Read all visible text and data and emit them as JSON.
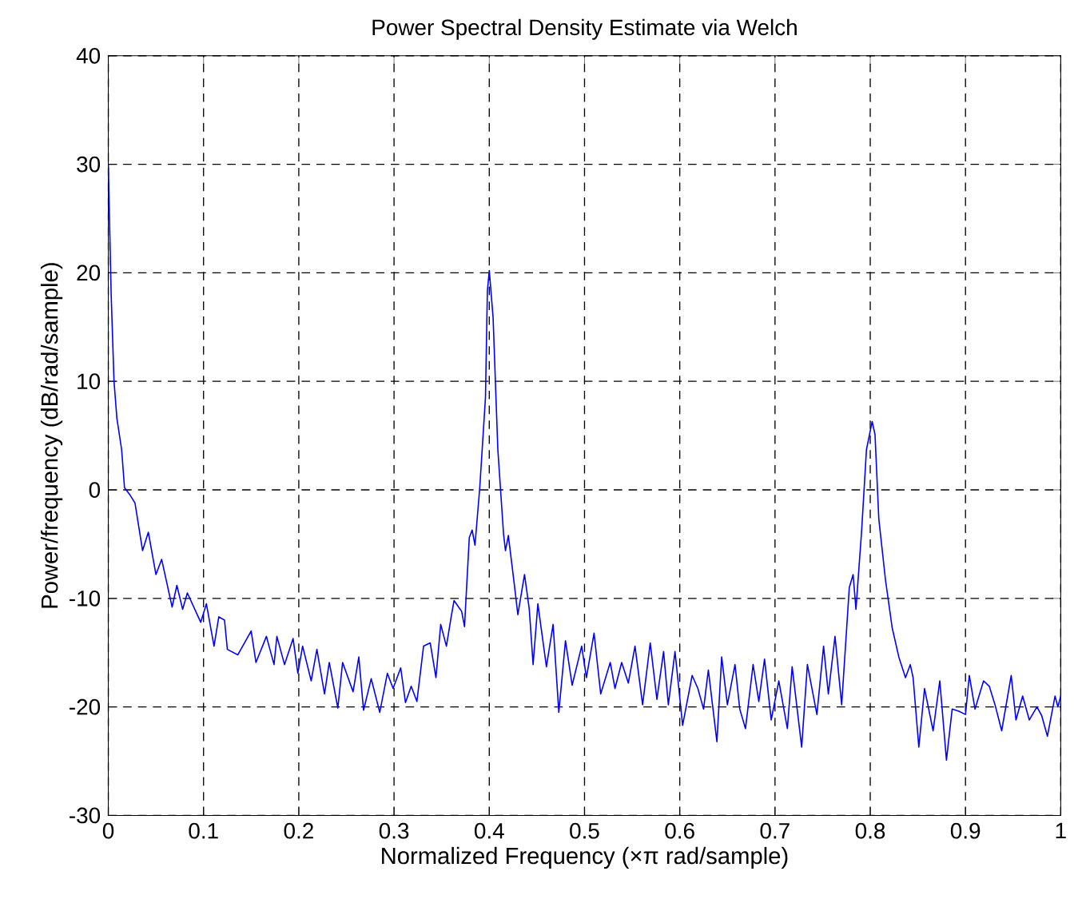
{
  "chart_data": {
    "type": "line",
    "title": "Power Spectral Density Estimate via Welch",
    "xlabel": "Normalized Frequency  (×π rad/sample)",
    "ylabel": "Power/frequency (dB/rad/sample)",
    "x": [
      0,
      0.003,
      0.006,
      0.009,
      0.014,
      0.017,
      0.023,
      0.028,
      0.036,
      0.042,
      0.05,
      0.056,
      0.067,
      0.072,
      0.078,
      0.083,
      0.097,
      0.103,
      0.111,
      0.116,
      0.122,
      0.125,
      0.136,
      0.15,
      0.155,
      0.166,
      0.174,
      0.177,
      0.185,
      0.194,
      0.199,
      0.204,
      0.213,
      0.219,
      0.227,
      0.232,
      0.241,
      0.246,
      0.257,
      0.263,
      0.268,
      0.276,
      0.285,
      0.293,
      0.299,
      0.307,
      0.312,
      0.318,
      0.324,
      0.331,
      0.338,
      0.344,
      0.349,
      0.355,
      0.36,
      0.363,
      0.371,
      0.374,
      0.379,
      0.382,
      0.385,
      0.39,
      0.396,
      0.398,
      0.4,
      0.404,
      0.409,
      0.415,
      0.417,
      0.42,
      0.426,
      0.43,
      0.437,
      0.442,
      0.446,
      0.451,
      0.46,
      0.467,
      0.473,
      0.48,
      0.487,
      0.497,
      0.502,
      0.51,
      0.517,
      0.527,
      0.532,
      0.539,
      0.546,
      0.553,
      0.561,
      0.569,
      0.576,
      0.583,
      0.588,
      0.595,
      0.603,
      0.613,
      0.619,
      0.625,
      0.63,
      0.639,
      0.644,
      0.65,
      0.658,
      0.663,
      0.669,
      0.677,
      0.683,
      0.689,
      0.696,
      0.704,
      0.713,
      0.718,
      0.728,
      0.734,
      0.744,
      0.751,
      0.756,
      0.763,
      0.77,
      0.778,
      0.782,
      0.785,
      0.791,
      0.796,
      0.802,
      0.805,
      0.809,
      0.816,
      0.823,
      0.83,
      0.837,
      0.842,
      0.845,
      0.851,
      0.857,
      0.866,
      0.873,
      0.88,
      0.886,
      0.893,
      0.9,
      0.904,
      0.91,
      0.919,
      0.925,
      0.931,
      0.938,
      0.948,
      0.953,
      0.96,
      0.967,
      0.975,
      0.98,
      0.986,
      0.994,
      0.997,
      1
    ],
    "series": [
      {
        "color": "#0000ff",
        "values": [
          30,
          18,
          10,
          6.6,
          3.7,
          0.2,
          -0.5,
          -1.2,
          -5.6,
          -3.9,
          -7.8,
          -6.4,
          -10.8,
          -8.8,
          -11,
          -9.5,
          -12.2,
          -10.5,
          -14.4,
          -11.7,
          -12,
          -14.7,
          -15.2,
          -13,
          -15.9,
          -13.5,
          -16.1,
          -13.5,
          -16.1,
          -13.7,
          -16.9,
          -14.4,
          -17.6,
          -14.7,
          -18.8,
          -15.9,
          -20.1,
          -15.9,
          -18.6,
          -15.4,
          -20.3,
          -17.4,
          -20.5,
          -16.9,
          -18.3,
          -16.4,
          -19.6,
          -18.1,
          -19.5,
          -14.4,
          -14.1,
          -17.3,
          -12.4,
          -14.4,
          -11.7,
          -10.2,
          -11.2,
          -12.6,
          -4.4,
          -3.7,
          -5.1,
          0.2,
          8.5,
          18.3,
          20.2,
          15.9,
          3.7,
          -4.1,
          -5.6,
          -4.2,
          -8.5,
          -11.5,
          -7.8,
          -11,
          -16.1,
          -10.5,
          -16.3,
          -12.4,
          -20.5,
          -13.9,
          -18,
          -14.4,
          -17.3,
          -13.2,
          -18.8,
          -15.9,
          -18.3,
          -15.9,
          -17.8,
          -14.4,
          -19.8,
          -14.1,
          -19.3,
          -14.9,
          -19.8,
          -14.9,
          -21.7,
          -17.1,
          -18.3,
          -20.2,
          -16.6,
          -23.2,
          -15.4,
          -19.8,
          -16.1,
          -20.2,
          -22,
          -16.1,
          -19.5,
          -15.6,
          -21.2,
          -17.6,
          -22,
          -16.3,
          -23.7,
          -16.1,
          -20.7,
          -14.4,
          -18.8,
          -13.5,
          -19.8,
          -9,
          -7.8,
          -11,
          -3.7,
          3.7,
          6.3,
          5.1,
          -2.7,
          -8.3,
          -12.7,
          -15.4,
          -17.3,
          -16.1,
          -17.3,
          -23.7,
          -18.3,
          -22.2,
          -17.6,
          -24.9,
          -20.2,
          -20.4,
          -20.7,
          -17.1,
          -20.2,
          -17.6,
          -18.1,
          -19.8,
          -22.2,
          -17.1,
          -21.2,
          -19,
          -21.2,
          -20,
          -20.8,
          -22.7,
          -19,
          -20,
          -19
        ]
      }
    ],
    "xlim": [
      0,
      1
    ],
    "ylim": [
      -30,
      40
    ],
    "xticks": [
      0,
      0.1,
      0.2,
      0.3,
      0.4,
      0.5,
      0.6,
      0.7,
      0.8,
      0.9,
      1
    ],
    "yticks": [
      -30,
      -20,
      -10,
      0,
      10,
      20,
      30,
      40
    ],
    "grid": true,
    "line_style": "solid"
  }
}
